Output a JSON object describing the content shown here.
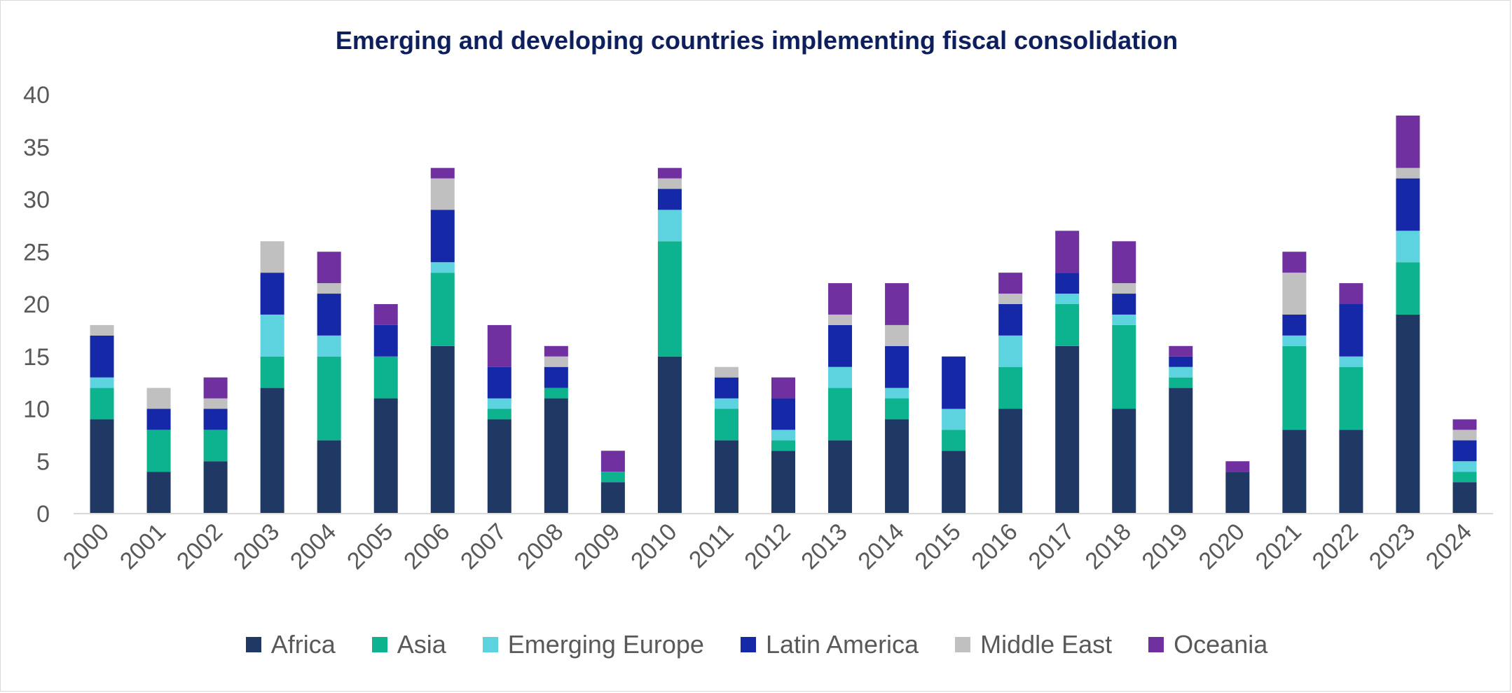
{
  "chart_data": {
    "type": "bar",
    "stacked": true,
    "title": "Emerging and developing countries implementing fiscal consolidation",
    "xlabel": "",
    "ylabel": "",
    "ylim": [
      0,
      40
    ],
    "yticks": [
      0,
      5,
      10,
      15,
      20,
      25,
      30,
      35,
      40
    ],
    "grid": false,
    "legend_position": "bottom",
    "categories": [
      "2000",
      "2001",
      "2002",
      "2003",
      "2004",
      "2005",
      "2006",
      "2007",
      "2008",
      "2009",
      "2010",
      "2011",
      "2012",
      "2013",
      "2014",
      "2015",
      "2016",
      "2017",
      "2018",
      "2019",
      "2020",
      "2021",
      "2022",
      "2023",
      "2024"
    ],
    "series": [
      {
        "name": "Africa",
        "color": "#1f3864",
        "values": [
          9,
          4,
          5,
          12,
          7,
          11,
          16,
          9,
          11,
          3,
          15,
          7,
          6,
          7,
          9,
          6,
          10,
          16,
          10,
          12,
          4,
          8,
          8,
          19,
          3
        ]
      },
      {
        "name": "Asia",
        "color": "#0db38e",
        "values": [
          3,
          4,
          3,
          3,
          8,
          4,
          7,
          1,
          1,
          1,
          11,
          3,
          1,
          5,
          2,
          2,
          4,
          4,
          8,
          1,
          0,
          8,
          6,
          5,
          1
        ]
      },
      {
        "name": "Emerging Europe",
        "color": "#5dd3e0",
        "values": [
          1,
          0,
          0,
          4,
          2,
          0,
          1,
          1,
          0,
          0,
          3,
          1,
          1,
          2,
          1,
          2,
          3,
          1,
          1,
          1,
          0,
          1,
          1,
          3,
          1
        ]
      },
      {
        "name": "Latin America",
        "color": "#1428a8",
        "values": [
          4,
          2,
          2,
          4,
          4,
          3,
          5,
          3,
          2,
          0,
          2,
          2,
          3,
          4,
          4,
          5,
          3,
          2,
          2,
          1,
          0,
          2,
          5,
          5,
          2
        ]
      },
      {
        "name": "Middle East",
        "color": "#c0c0c0",
        "values": [
          1,
          2,
          1,
          3,
          1,
          0,
          3,
          0,
          1,
          0,
          1,
          1,
          0,
          1,
          2,
          0,
          1,
          0,
          1,
          0,
          0,
          4,
          0,
          1,
          1
        ]
      },
      {
        "name": "Oceania",
        "color": "#7030a0",
        "values": [
          0,
          0,
          2,
          0,
          3,
          2,
          1,
          4,
          1,
          2,
          1,
          0,
          2,
          3,
          4,
          0,
          2,
          4,
          4,
          1,
          1,
          2,
          2,
          5,
          1
        ]
      }
    ]
  }
}
